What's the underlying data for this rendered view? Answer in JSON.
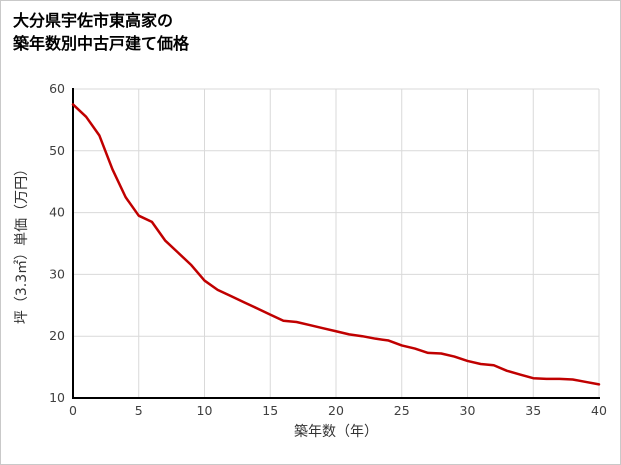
{
  "chart_data": {
    "type": "line",
    "title_lines": [
      "大分県宇佐市東高家の",
      "築年数別中古戸建て価格"
    ],
    "xlabel": "築年数（年）",
    "ylabel": "坪（3.3㎡）単価（万円）",
    "xlim": [
      0,
      40
    ],
    "ylim": [
      10,
      60
    ],
    "xticks": [
      0,
      5,
      10,
      15,
      20,
      25,
      30,
      35,
      40
    ],
    "yticks": [
      10,
      20,
      30,
      40,
      50,
      60
    ],
    "grid": true,
    "legend": "none",
    "line_color": "#c00000",
    "grid_color": "#d9d9d9",
    "axis_color": "#000000",
    "tick_label_color": "#404040",
    "series": [
      {
        "name": "坪単価",
        "x": [
          0,
          1,
          2,
          3,
          4,
          5,
          6,
          7,
          8,
          9,
          10,
          11,
          12,
          13,
          14,
          15,
          16,
          17,
          18,
          19,
          20,
          21,
          22,
          23,
          24,
          25,
          26,
          27,
          28,
          29,
          30,
          31,
          32,
          33,
          34,
          35,
          36,
          37,
          38,
          39,
          40
        ],
        "values": [
          57.5,
          55.5,
          52.5,
          47,
          42.5,
          39.5,
          38.5,
          35.5,
          33.5,
          31.5,
          29,
          27.5,
          26.5,
          25.5,
          24.5,
          23.5,
          22.5,
          22.3,
          21.8,
          21.3,
          20.8,
          20.3,
          20,
          19.6,
          19.3,
          18.5,
          18,
          17.3,
          17.2,
          16.7,
          16,
          15.5,
          15.3,
          14.4,
          13.8,
          13.2,
          13.1,
          13.1,
          13,
          12.6,
          12.2
        ]
      }
    ]
  }
}
